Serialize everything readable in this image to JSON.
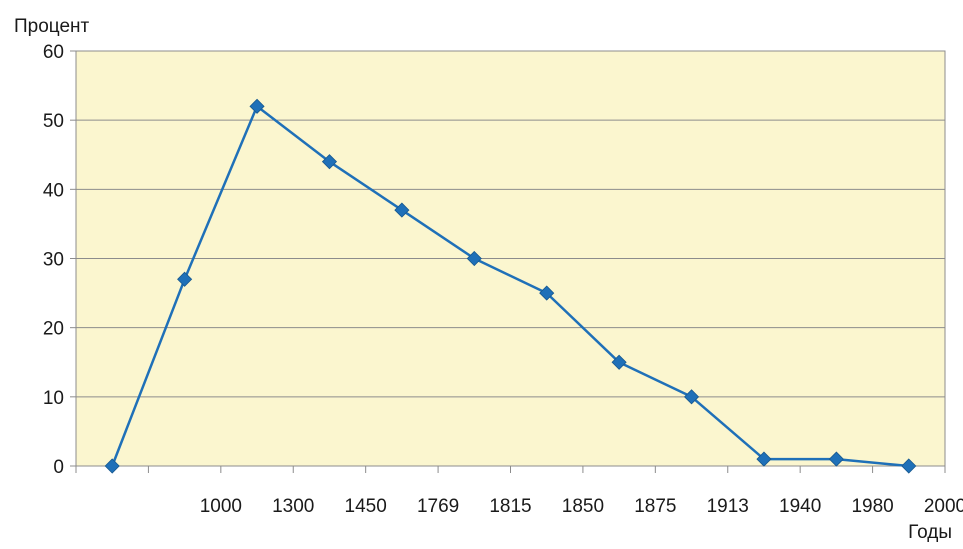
{
  "chart_data": {
    "type": "line",
    "title": "",
    "ylabel": "Процент",
    "xlabel": "Годы",
    "categories": [
      "",
      "1000",
      "1300",
      "1450",
      "1769",
      "1815",
      "1850",
      "1875",
      "1913",
      "1940",
      "1980",
      "2000"
    ],
    "series": [
      {
        "values": [
          0,
          27,
          52,
          44,
          37,
          30,
          25,
          15,
          10,
          1,
          1,
          0
        ]
      }
    ],
    "ylim": [
      0,
      60
    ],
    "yticks": [
      0,
      10,
      20,
      30,
      40,
      50,
      60
    ],
    "grid": true,
    "legend": "none",
    "colors": {
      "plot_background": "#FBF6CF",
      "line": "#1F70B8",
      "marker": "#1F70B8",
      "grid": "#8C8C8C"
    }
  }
}
